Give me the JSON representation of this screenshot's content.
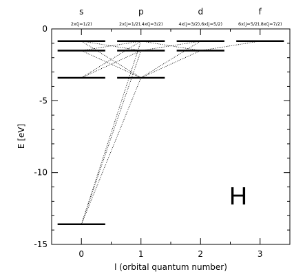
{
  "chart_data": {
    "type": "scatter",
    "element_label": "H",
    "xlabel": "l (orbital quantum number)",
    "ylabel": "E [eV]",
    "xlim": [
      -0.5,
      3.5
    ],
    "ylim": [
      -15,
      0
    ],
    "xticks": [
      "0",
      "1",
      "2",
      "3"
    ],
    "yticks": [
      "0",
      "-5",
      "-10",
      "-15"
    ],
    "columns": [
      {
        "l": 0,
        "header": "s",
        "sub": "2x(j=1/2)"
      },
      {
        "l": 1,
        "header": "p",
        "sub": "2x(j=1/2),4x(j=3/2)"
      },
      {
        "l": 2,
        "header": "d",
        "sub": "4x(j=3/2),6x(j=5/2)"
      },
      {
        "l": 3,
        "header": "f",
        "sub": "6x(j=5/2),8x(j=7/2)"
      }
    ],
    "levels": [
      {
        "l": 0,
        "n": 1,
        "energy": -13.6
      },
      {
        "l": 0,
        "n": 2,
        "energy": -3.4
      },
      {
        "l": 0,
        "n": 3,
        "energy": -1.51
      },
      {
        "l": 0,
        "n": 4,
        "energy": -0.85
      },
      {
        "l": 1,
        "n": 2,
        "energy": -3.4
      },
      {
        "l": 1,
        "n": 3,
        "energy": -1.51
      },
      {
        "l": 1,
        "n": 4,
        "energy": -0.85
      },
      {
        "l": 2,
        "n": 3,
        "energy": -1.51
      },
      {
        "l": 2,
        "n": 4,
        "energy": -0.85
      },
      {
        "l": 3,
        "n": 4,
        "energy": -0.85
      }
    ],
    "transitions": [
      {
        "from": [
          1,
          2
        ],
        "to": [
          0,
          1
        ]
      },
      {
        "from": [
          1,
          3
        ],
        "to": [
          0,
          1
        ]
      },
      {
        "from": [
          1,
          4
        ],
        "to": [
          0,
          1
        ]
      },
      {
        "from": [
          1,
          3
        ],
        "to": [
          0,
          2
        ]
      },
      {
        "from": [
          1,
          4
        ],
        "to": [
          0,
          2
        ]
      },
      {
        "from": [
          1,
          4
        ],
        "to": [
          0,
          3
        ]
      },
      {
        "from": [
          0,
          3
        ],
        "to": [
          1,
          2
        ]
      },
      {
        "from": [
          0,
          4
        ],
        "to": [
          1,
          2
        ]
      },
      {
        "from": [
          0,
          4
        ],
        "to": [
          1,
          3
        ]
      },
      {
        "from": [
          2,
          3
        ],
        "to": [
          1,
          2
        ]
      },
      {
        "from": [
          2,
          4
        ],
        "to": [
          1,
          2
        ]
      },
      {
        "from": [
          2,
          4
        ],
        "to": [
          1,
          3
        ]
      },
      {
        "from": [
          1,
          4
        ],
        "to": [
          2,
          3
        ]
      },
      {
        "from": [
          3,
          4
        ],
        "to": [
          2,
          3
        ]
      }
    ]
  }
}
